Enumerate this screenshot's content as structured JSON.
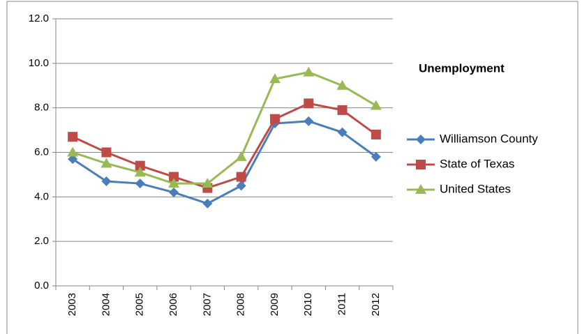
{
  "chart_data": {
    "type": "line",
    "title": "Unemployment",
    "categories": [
      "2003",
      "2004",
      "2005",
      "2006",
      "2007",
      "2008",
      "2009",
      "2010",
      "2011",
      "2012"
    ],
    "series": [
      {
        "name": "Williamson County",
        "color": "#4a7ebb",
        "marker": "diamond",
        "values": [
          5.7,
          4.7,
          4.6,
          4.2,
          3.7,
          4.5,
          7.3,
          7.4,
          6.9,
          5.8
        ]
      },
      {
        "name": "State of Texas",
        "color": "#be4b48",
        "marker": "square",
        "values": [
          6.7,
          6.0,
          5.4,
          4.9,
          4.4,
          4.9,
          7.5,
          8.2,
          7.9,
          6.8
        ]
      },
      {
        "name": "United States",
        "color": "#98b954",
        "marker": "triangle",
        "values": [
          6.0,
          5.5,
          5.1,
          4.6,
          4.6,
          5.8,
          9.3,
          9.6,
          9.0,
          8.1
        ]
      }
    ],
    "ylim": [
      0,
      12
    ],
    "yticks": [
      {
        "value": 0,
        "label": "0.0"
      },
      {
        "value": 2,
        "label": "2.0"
      },
      {
        "value": 4,
        "label": "4.0"
      },
      {
        "value": 6,
        "label": "6.0"
      },
      {
        "value": 8,
        "label": "8.0"
      },
      {
        "value": 10,
        "label": "10.0"
      },
      {
        "value": 12,
        "label": "12.0"
      }
    ],
    "grid": true,
    "legend": "right"
  }
}
